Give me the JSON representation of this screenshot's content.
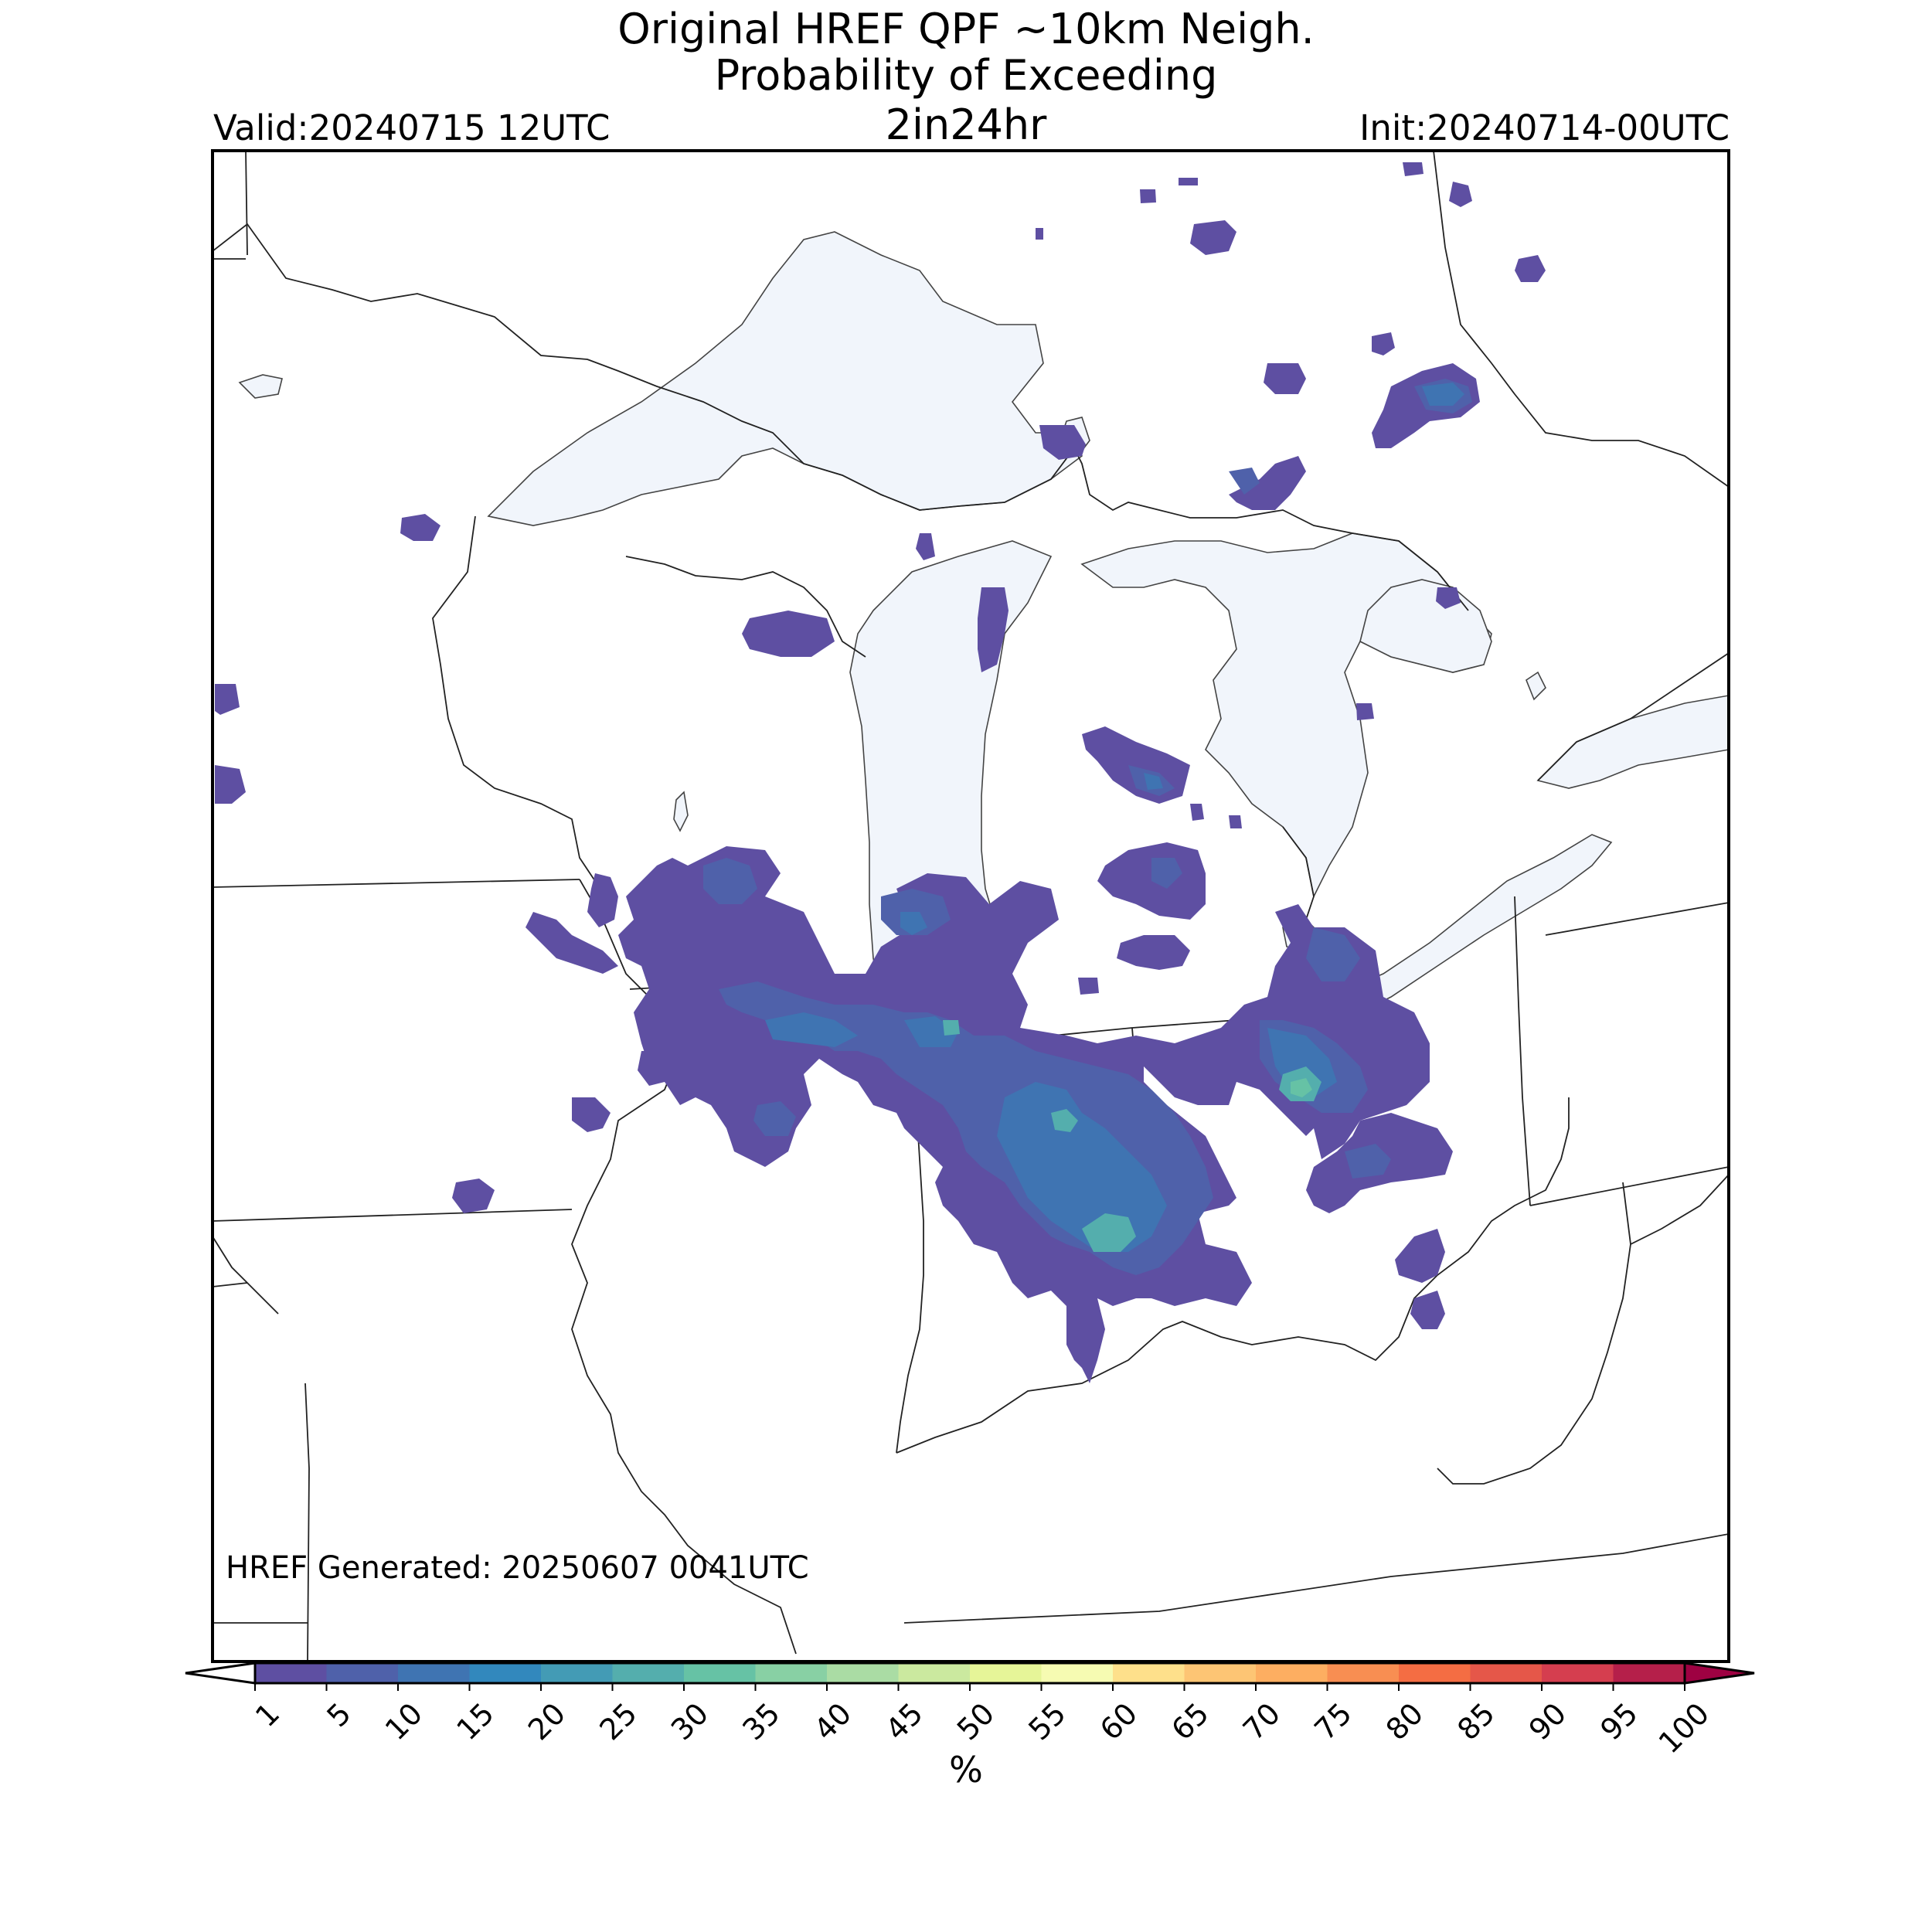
{
  "header": {
    "title_line1": "Original HREF QPF ~10km Neigh.",
    "title_line2": "Probability of Exceeding",
    "title_line3": "2in24hr",
    "valid": "Valid:20240715 12UTC",
    "init": "Init:20240714-00UTC"
  },
  "footer": {
    "generated": "HREF Generated: 20250607 0041UTC"
  },
  "colorbar": {
    "unit": "%",
    "levels": [
      "1",
      "5",
      "10",
      "15",
      "20",
      "25",
      "30",
      "35",
      "40",
      "45",
      "50",
      "55",
      "60",
      "65",
      "70",
      "75",
      "80",
      "85",
      "90",
      "95",
      "100"
    ],
    "colors": [
      "#5e4fa2",
      "#4f61aa",
      "#3f74b2",
      "#3288bd",
      "#439bb5",
      "#54aead",
      "#66c2a5",
      "#88d0a4",
      "#aadca4",
      "#cbe99f",
      "#e6f598",
      "#f6fbb2",
      "#fee08b",
      "#fdc574",
      "#fdae61",
      "#f88e52",
      "#f46d43",
      "#e55749",
      "#d53e4f",
      "#b51f4a",
      "#9e0142"
    ]
  },
  "map": {
    "lake_color": "#f1f5fb",
    "border_color": "#222222",
    "probability_colors": {
      "p1": "#5e4fa2",
      "p5": "#4f61aa",
      "p10": "#3f74b2",
      "p15": "#3288bd",
      "p20": "#439bb5",
      "p25": "#54aead",
      "p30": "#66c2a5"
    }
  }
}
